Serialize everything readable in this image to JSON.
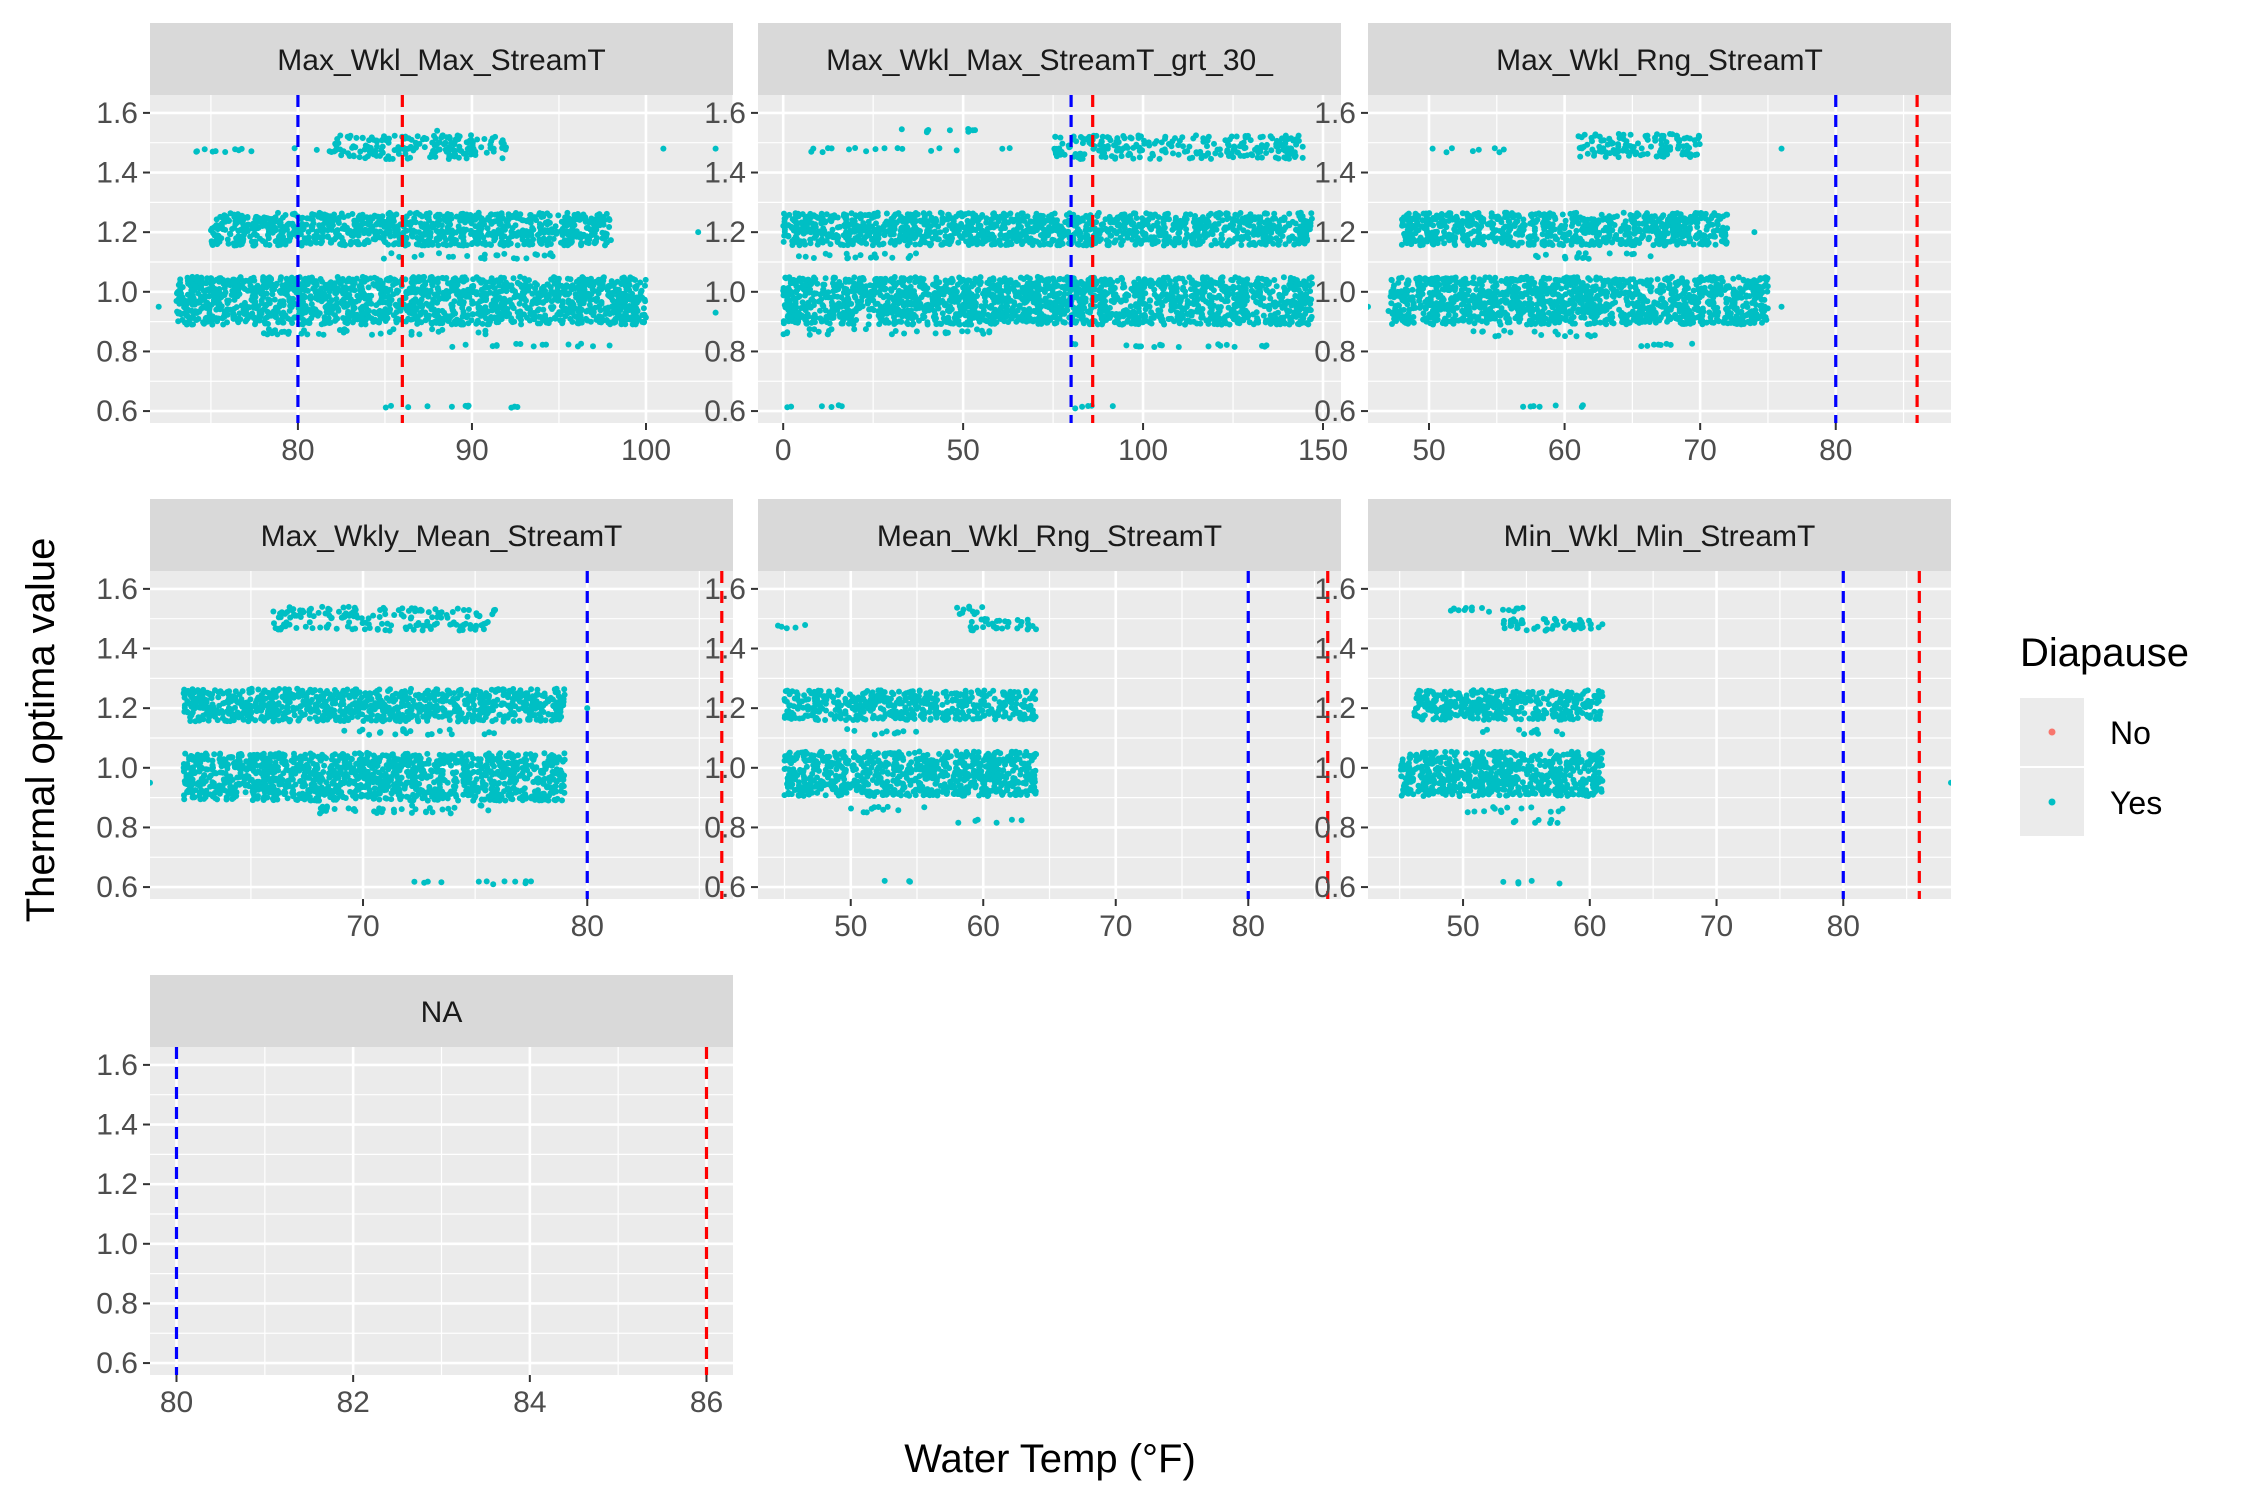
{
  "chart_data": {
    "type": "scatter",
    "xlabel": "Water Temp (°F)",
    "ylabel": "Thermal optima value",
    "legend": {
      "title": "Diapause",
      "position": "right",
      "entries": [
        {
          "label": "No",
          "color": "#F8766D"
        },
        {
          "label": "Yes",
          "color": "#00BFC4"
        }
      ]
    },
    "colors": {
      "panel_bg": "#EBEBEB",
      "strip_bg": "#D9D9D9",
      "grid": "#FFFFFF",
      "blue_line": "#0000FF",
      "red_line": "#FF0000"
    },
    "reference_lines": [
      {
        "x": 80,
        "color": "#0000FF",
        "style": "dashed"
      },
      {
        "x": 86,
        "color": "#FF0000",
        "style": "dashed"
      }
    ],
    "ylim": [
      0.56,
      1.66
    ],
    "yticks": [
      0.6,
      0.8,
      1.0,
      1.2,
      1.4,
      1.6
    ],
    "ytick_labels": [
      "0.6",
      "0.8",
      "1.0",
      "1.2",
      "1.4",
      "1.6"
    ],
    "panels": [
      {
        "title": "Max_Wkl_Max_StreamT",
        "xlim": [
          71.5,
          105
        ],
        "xticks": [
          80,
          90,
          100
        ],
        "xtick_labels": [
          "80",
          "90",
          "100"
        ],
        "bands": [
          {
            "y": 1.485,
            "x": [
              82,
              92
            ],
            "h": 0.08,
            "dens": 0.6
          },
          {
            "y": 1.475,
            "x": [
              74,
              86
            ],
            "h": 0.015,
            "dens": 0.25
          },
          {
            "y": 1.21,
            "x": [
              75,
              98
            ],
            "h": 0.11,
            "dens": 1.0
          },
          {
            "y": 1.12,
            "x": [
              84,
              95
            ],
            "h": 0.02,
            "dens": 0.3
          },
          {
            "y": 0.97,
            "x": [
              73,
              100
            ],
            "h": 0.16,
            "dens": 1.0
          },
          {
            "y": 0.865,
            "x": [
              78,
              91
            ],
            "h": 0.02,
            "dens": 0.35
          },
          {
            "y": 0.82,
            "x": [
              88,
              98
            ],
            "h": 0.012,
            "dens": 0.3
          },
          {
            "y": 0.615,
            "x": [
              85,
              93
            ],
            "h": 0.012,
            "dens": 0.3
          }
        ],
        "points": [
          [
            72,
            0.95
          ],
          [
            104,
            0.93
          ],
          [
            103,
            1.2
          ],
          [
            104,
            1.48
          ],
          [
            101,
            1.48
          ],
          [
            88,
            1.54
          ]
        ]
      },
      {
        "title": "Max_Wkl_Max_StreamT_grt_30_",
        "xlim": [
          -7,
          155
        ],
        "xticks": [
          0,
          50,
          100,
          150
        ],
        "xtick_labels": [
          "0",
          "50",
          "100",
          "150"
        ],
        "bands": [
          {
            "y": 1.485,
            "x": [
              75,
              145
            ],
            "h": 0.08,
            "dens": 0.55
          },
          {
            "y": 1.475,
            "x": [
              0,
              75
            ],
            "h": 0.015,
            "dens": 0.2
          },
          {
            "y": 1.54,
            "x": [
              30,
              55
            ],
            "h": 0.012,
            "dens": 0.4
          },
          {
            "y": 1.21,
            "x": [
              0,
              147
            ],
            "h": 0.11,
            "dens": 1.0
          },
          {
            "y": 1.12,
            "x": [
              0,
              40
            ],
            "h": 0.02,
            "dens": 0.3
          },
          {
            "y": 0.97,
            "x": [
              0,
              147
            ],
            "h": 0.16,
            "dens": 1.0
          },
          {
            "y": 0.865,
            "x": [
              0,
              60
            ],
            "h": 0.02,
            "dens": 0.3
          },
          {
            "y": 0.82,
            "x": [
              75,
              135
            ],
            "h": 0.012,
            "dens": 0.3
          },
          {
            "y": 0.615,
            "x": [
              0,
              20
            ],
            "h": 0.012,
            "dens": 0.3
          },
          {
            "y": 0.615,
            "x": [
              80,
              95
            ],
            "h": 0.012,
            "dens": 0.3
          }
        ],
        "points": []
      },
      {
        "title": "Max_Wkl_Rng_StreamT",
        "xlim": [
          45.5,
          88.5
        ],
        "xticks": [
          50,
          60,
          70,
          80
        ],
        "xtick_labels": [
          "50",
          "60",
          "70",
          "80"
        ],
        "bands": [
          {
            "y": 1.49,
            "x": [
              61,
              70
            ],
            "h": 0.08,
            "dens": 0.6
          },
          {
            "y": 1.475,
            "x": [
              50,
              56
            ],
            "h": 0.015,
            "dens": 0.3
          },
          {
            "y": 1.21,
            "x": [
              48,
              72
            ],
            "h": 0.11,
            "dens": 1.0
          },
          {
            "y": 1.12,
            "x": [
              57,
              67
            ],
            "h": 0.02,
            "dens": 0.3
          },
          {
            "y": 0.97,
            "x": [
              47,
              75
            ],
            "h": 0.16,
            "dens": 1.0
          },
          {
            "y": 0.86,
            "x": [
              53,
              63
            ],
            "h": 0.02,
            "dens": 0.3
          },
          {
            "y": 0.82,
            "x": [
              63,
              70
            ],
            "h": 0.012,
            "dens": 0.3
          },
          {
            "y": 0.615,
            "x": [
              56,
              62
            ],
            "h": 0.012,
            "dens": 0.3
          }
        ],
        "points": [
          [
            45.5,
            0.95
          ],
          [
            76,
            1.48
          ],
          [
            74,
            1.2
          ],
          [
            76,
            0.95
          ]
        ]
      },
      {
        "title": "Max_Wkly_Mean_StreamT",
        "xlim": [
          60.5,
          86.5
        ],
        "xticks": [
          70,
          80
        ],
        "xtick_labels": [
          "70",
          "80"
        ],
        "bands": [
          {
            "y": 1.52,
            "x": [
              66,
              76
            ],
            "h": 0.04,
            "dens": 0.5
          },
          {
            "y": 1.475,
            "x": [
              66,
              76
            ],
            "h": 0.03,
            "dens": 0.5
          },
          {
            "y": 1.21,
            "x": [
              62,
              79
            ],
            "h": 0.11,
            "dens": 1.0
          },
          {
            "y": 1.12,
            "x": [
              69,
              76
            ],
            "h": 0.02,
            "dens": 0.3
          },
          {
            "y": 0.97,
            "x": [
              62,
              79
            ],
            "h": 0.16,
            "dens": 1.0
          },
          {
            "y": 0.86,
            "x": [
              68,
              76
            ],
            "h": 0.03,
            "dens": 0.3
          },
          {
            "y": 0.615,
            "x": [
              72,
              78
            ],
            "h": 0.012,
            "dens": 0.3
          }
        ],
        "points": [
          [
            60.5,
            0.95
          ],
          [
            62,
            1.25
          ],
          [
            62,
            1.0
          ],
          [
            80,
            1.2
          ]
        ]
      },
      {
        "title": "Mean_Wkl_Rng_StreamT",
        "xlim": [
          43,
          87
        ],
        "xticks": [
          50,
          60,
          70,
          80
        ],
        "xtick_labels": [
          "50",
          "60",
          "70",
          "80"
        ],
        "bands": [
          {
            "y": 1.53,
            "x": [
              58,
              60
            ],
            "h": 0.03,
            "dens": 0.6
          },
          {
            "y": 1.48,
            "x": [
              59,
              64
            ],
            "h": 0.04,
            "dens": 0.6
          },
          {
            "y": 1.475,
            "x": [
              44,
              47
            ],
            "h": 0.015,
            "dens": 0.4
          },
          {
            "y": 1.21,
            "x": [
              45,
              64
            ],
            "h": 0.1,
            "dens": 0.9
          },
          {
            "y": 1.12,
            "x": [
              49,
              55
            ],
            "h": 0.02,
            "dens": 0.3
          },
          {
            "y": 0.98,
            "x": [
              45,
              64
            ],
            "h": 0.15,
            "dens": 1.0
          },
          {
            "y": 0.86,
            "x": [
              50,
              56
            ],
            "h": 0.02,
            "dens": 0.3
          },
          {
            "y": 0.82,
            "x": [
              58,
              63
            ],
            "h": 0.012,
            "dens": 0.3
          },
          {
            "y": 0.615,
            "x": [
              52,
              55
            ],
            "h": 0.012,
            "dens": 0.3
          }
        ],
        "points": []
      },
      {
        "title": "Min_Wkl_Min_StreamT",
        "xlim": [
          42.5,
          88.5
        ],
        "xticks": [
          50,
          60,
          70,
          80
        ],
        "xtick_labels": [
          "50",
          "60",
          "70",
          "80"
        ],
        "bands": [
          {
            "y": 1.53,
            "x": [
              49,
              55
            ],
            "h": 0.02,
            "dens": 0.5
          },
          {
            "y": 1.48,
            "x": [
              53,
              61
            ],
            "h": 0.04,
            "dens": 0.6
          },
          {
            "y": 1.21,
            "x": [
              46,
              61
            ],
            "h": 0.1,
            "dens": 1.0
          },
          {
            "y": 1.12,
            "x": [
              51,
              58
            ],
            "h": 0.02,
            "dens": 0.3
          },
          {
            "y": 0.98,
            "x": [
              45,
              61
            ],
            "h": 0.15,
            "dens": 1.0
          },
          {
            "y": 0.86,
            "x": [
              50,
              58
            ],
            "h": 0.02,
            "dens": 0.3
          },
          {
            "y": 0.82,
            "x": [
              54,
              60
            ],
            "h": 0.012,
            "dens": 0.3
          },
          {
            "y": 0.615,
            "x": [
              53,
              58
            ],
            "h": 0.012,
            "dens": 0.3
          }
        ],
        "points": [
          [
            88.5,
            0.95
          ]
        ]
      },
      {
        "title": "NA",
        "xlim": [
          79.7,
          86.3
        ],
        "xticks": [
          80,
          82,
          84,
          86
        ],
        "xtick_labels": [
          "80",
          "82",
          "84",
          "86"
        ],
        "bands": [],
        "points": []
      }
    ]
  }
}
